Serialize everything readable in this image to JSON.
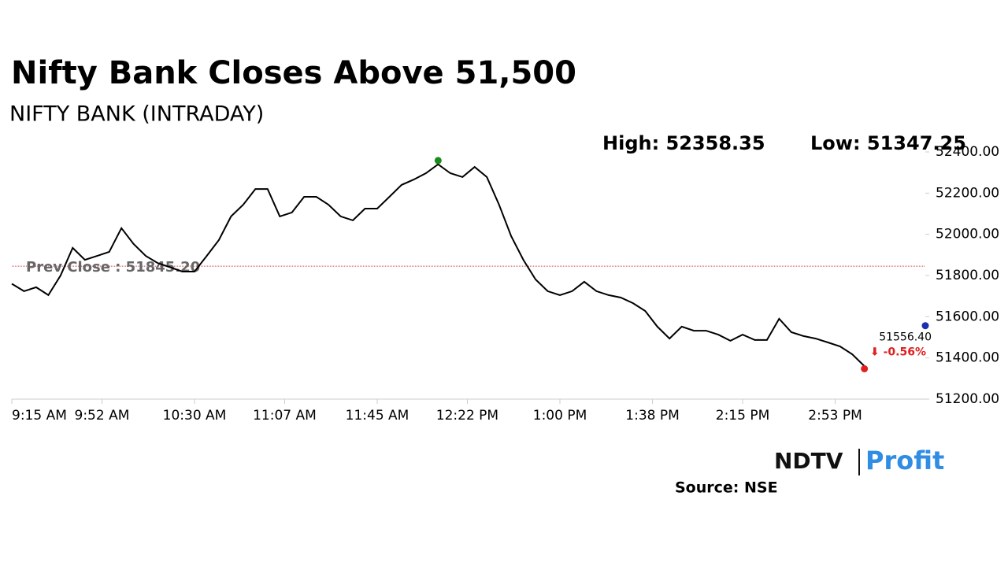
{
  "chart_data": {
    "type": "line",
    "title": "Nifty Bank Closes Above 51,500",
    "subtitle": "NIFTY BANK (INTRADAY)",
    "high": {
      "text": "High: 52358.35",
      "value": 52358.35,
      "x": "12:10 PM",
      "color": "#1a8a1a"
    },
    "low": {
      "text": "Low: 51347.25",
      "value": 51347.25,
      "x": "3:05 PM",
      "color": "#e02020"
    },
    "prev_close": {
      "text": "Prev Close : 51845.20",
      "value": 51845.2,
      "color": "#d04040"
    },
    "last": {
      "value": 51556.4,
      "value_label": "51556.40",
      "change": "⬇ -0.56%",
      "x": "3:30 PM",
      "color": "#1c2fb0",
      "change_color": "#e02020"
    },
    "x": [
      "9:15 AM",
      "9:20 AM",
      "9:25 AM",
      "9:30 AM",
      "9:35 AM",
      "9:40 AM",
      "9:45 AM",
      "9:50 AM",
      "9:55 AM",
      "10:00 AM",
      "10:05 AM",
      "10:10 AM",
      "10:15 AM",
      "10:20 AM",
      "10:25 AM",
      "10:30 AM",
      "10:35 AM",
      "10:40 AM",
      "10:45 AM",
      "10:50 AM",
      "10:55 AM",
      "11:00 AM",
      "11:05 AM",
      "11:10 AM",
      "11:15 AM",
      "11:20 AM",
      "11:25 AM",
      "11:30 AM",
      "11:35 AM",
      "11:40 AM",
      "11:45 AM",
      "11:50 AM",
      "11:55 AM",
      "12:00 PM",
      "12:05 PM",
      "12:10 PM",
      "12:15 PM",
      "12:20 PM",
      "12:25 PM",
      "12:30 PM",
      "12:35 PM",
      "12:40 PM",
      "12:45 PM",
      "12:50 PM",
      "12:55 PM",
      "1:00 PM",
      "1:05 PM",
      "1:10 PM",
      "1:15 PM",
      "1:20 PM",
      "1:25 PM",
      "1:30 PM",
      "1:35 PM",
      "1:40 PM",
      "1:45 PM",
      "1:50 PM",
      "1:55 PM",
      "2:00 PM",
      "2:05 PM",
      "2:10 PM",
      "2:15 PM",
      "2:20 PM",
      "2:25 PM",
      "2:30 PM",
      "2:35 PM",
      "2:40 PM",
      "2:45 PM",
      "2:50 PM",
      "2:55 PM",
      "3:00 PM",
      "3:05 PM"
    ],
    "series": [
      {
        "name": "NIFTY BANK",
        "color": "#000000",
        "values": [
          51760,
          51724,
          51743,
          51705,
          51800,
          51934,
          51876,
          51895,
          51915,
          52030,
          51953,
          51895,
          51860,
          51840,
          51819,
          51819,
          51895,
          51972,
          52087,
          52144,
          52220,
          52220,
          52087,
          52106,
          52182,
          52182,
          52144,
          52087,
          52068,
          52125,
          52125,
          52182,
          52240,
          52266,
          52297,
          52340,
          52297,
          52278,
          52327,
          52278,
          52144,
          51991,
          51876,
          51781,
          51724,
          51705,
          51724,
          51770,
          51724,
          51705,
          51693,
          51666,
          51628,
          51552,
          51494,
          51552,
          51532,
          51532,
          51513,
          51483,
          51513,
          51487,
          51487,
          51590,
          51525,
          51506,
          51494,
          51475,
          51456,
          51418,
          51360
        ]
      }
    ],
    "xlim": [
      "9:15 AM",
      "3:30 PM"
    ],
    "xticks": [
      "9:15 AM",
      "9:52 AM",
      "10:30 AM",
      "11:07 AM",
      "11:45 AM",
      "12:22 PM",
      "1:00 PM",
      "1:38 PM",
      "2:15 PM",
      "2:53 PM"
    ],
    "ylim": [
      51200,
      52400
    ],
    "yticks": [
      {
        "value": 51200,
        "label": "51200.00"
      },
      {
        "value": 51400,
        "label": "51400.00"
      },
      {
        "value": 51600,
        "label": "51600.00"
      },
      {
        "value": 51800,
        "label": "51800.00"
      },
      {
        "value": 52000,
        "label": "52000.00"
      },
      {
        "value": 52200,
        "label": "52200.00"
      },
      {
        "value": 52400,
        "label": "52400.00"
      }
    ],
    "logo": {
      "left": "NDTV",
      "right": "Profit"
    },
    "source": "Source: NSE"
  }
}
